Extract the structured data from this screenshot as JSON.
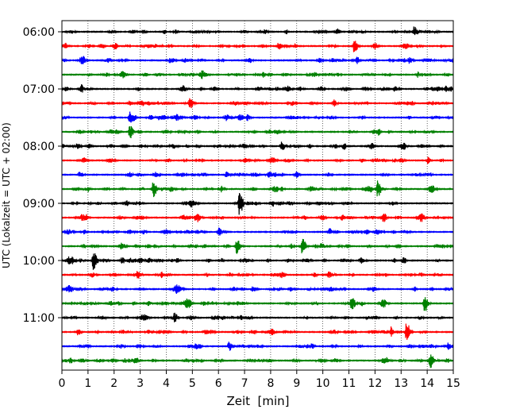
{
  "chart_data": {
    "type": "line",
    "title": "",
    "xlabel": "Zeit  [min]",
    "ylabel": "UTC (Lokalzeit = UTC + 02:00)",
    "xlim": [
      0,
      15
    ],
    "x_ticks": [
      "0",
      "1",
      "2",
      "3",
      "4",
      "5",
      "6",
      "7",
      "8",
      "9",
      "10",
      "11",
      "12",
      "13",
      "14",
      "15"
    ],
    "y_ticks": [
      "06:00",
      "07:00",
      "08:00",
      "09:00",
      "10:00",
      "11:00"
    ],
    "grid": "vertical dotted at each minute",
    "trace_interval_min": 15,
    "series_colors": [
      "#000000",
      "#ff0000",
      "#0000ff",
      "#008000"
    ],
    "traces": [
      {
        "start": "06:00",
        "color": "#000000",
        "events": [
          {
            "t": 13.5,
            "amp": 0.8
          }
        ]
      },
      {
        "start": "06:15",
        "color": "#ff0000",
        "events": [
          {
            "t": 11.2,
            "amp": 1.0
          },
          {
            "t": 8.3,
            "amp": 0.5
          }
        ]
      },
      {
        "start": "06:30",
        "color": "#0000ff",
        "events": [
          {
            "t": 13.3,
            "amp": 0.5
          }
        ]
      },
      {
        "start": "06:45",
        "color": "#008000",
        "events": [
          {
            "t": 7.7,
            "amp": 0.4
          }
        ]
      },
      {
        "start": "07:00",
        "color": "#000000",
        "events": [
          {
            "t": 14.7,
            "amp": 0.4
          }
        ]
      },
      {
        "start": "07:15",
        "color": "#ff0000",
        "events": [
          {
            "t": 4.9,
            "amp": 0.8
          },
          {
            "t": 10.4,
            "amp": 0.5
          }
        ]
      },
      {
        "start": "07:30",
        "color": "#0000ff",
        "events": [
          {
            "t": 2.6,
            "amp": 0.9
          }
        ]
      },
      {
        "start": "07:45",
        "color": "#008000",
        "events": [
          {
            "t": 2.6,
            "amp": 1.0
          }
        ]
      },
      {
        "start": "08:00",
        "color": "#000000",
        "events": [
          {
            "t": 8.4,
            "amp": 0.5
          }
        ]
      },
      {
        "start": "08:15",
        "color": "#ff0000",
        "events": []
      },
      {
        "start": "08:30",
        "color": "#0000ff",
        "events": [
          {
            "t": 6.3,
            "amp": 0.4
          }
        ]
      },
      {
        "start": "08:45",
        "color": "#008000",
        "events": [
          {
            "t": 3.5,
            "amp": 0.8
          },
          {
            "t": 12.1,
            "amp": 0.9
          },
          {
            "t": 14.1,
            "amp": 0.5
          }
        ]
      },
      {
        "start": "09:00",
        "color": "#000000",
        "events": [
          {
            "t": 6.8,
            "amp": 1.5
          },
          {
            "t": 4.9,
            "amp": 0.4
          }
        ]
      },
      {
        "start": "09:15",
        "color": "#ff0000",
        "events": [
          {
            "t": 12.3,
            "amp": 0.3
          }
        ]
      },
      {
        "start": "09:30",
        "color": "#0000ff",
        "events": [
          {
            "t": 6.0,
            "amp": 0.6
          }
        ]
      },
      {
        "start": "09:45",
        "color": "#008000",
        "events": [
          {
            "t": 6.7,
            "amp": 1.3
          },
          {
            "t": 9.2,
            "amp": 0.8
          }
        ]
      },
      {
        "start": "10:00",
        "color": "#000000",
        "events": [
          {
            "t": 1.2,
            "amp": 1.4
          },
          {
            "t": 2.3,
            "amp": 0.4
          }
        ]
      },
      {
        "start": "10:15",
        "color": "#ff0000",
        "events": [
          {
            "t": 2.9,
            "amp": 0.5
          }
        ]
      },
      {
        "start": "10:30",
        "color": "#0000ff",
        "events": [
          {
            "t": 7.3,
            "amp": 0.4
          }
        ]
      },
      {
        "start": "10:45",
        "color": "#008000",
        "events": [
          {
            "t": 11.1,
            "amp": 1.1
          },
          {
            "t": 13.9,
            "amp": 1.3
          }
        ]
      },
      {
        "start": "11:00",
        "color": "#000000",
        "events": [
          {
            "t": 4.3,
            "amp": 0.7
          }
        ]
      },
      {
        "start": "11:15",
        "color": "#ff0000",
        "events": [
          {
            "t": 13.2,
            "amp": 1.5
          },
          {
            "t": 12.6,
            "amp": 0.5
          }
        ]
      },
      {
        "start": "11:30",
        "color": "#0000ff",
        "events": [
          {
            "t": 6.4,
            "amp": 0.7
          },
          {
            "t": 14.8,
            "amp": 0.4
          }
        ]
      },
      {
        "start": "11:45",
        "color": "#008000",
        "events": [
          {
            "t": 14.1,
            "amp": 1.2
          }
        ]
      }
    ]
  }
}
